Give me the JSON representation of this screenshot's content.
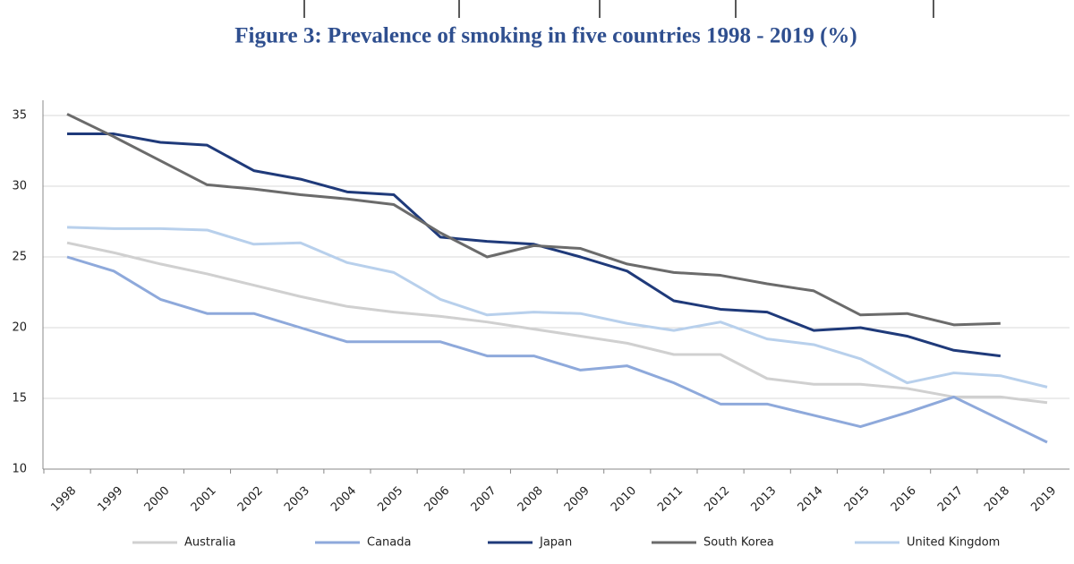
{
  "chart_data": {
    "type": "line",
    "title": "Figure 3: Prevalence of smoking in five countries 1998 - 2019 (%)",
    "categories": [
      "1998",
      "1999",
      "2000",
      "2001",
      "2002",
      "2003",
      "2004",
      "2005",
      "2006",
      "2007",
      "2008",
      "2009",
      "2010",
      "2011",
      "2012",
      "2013",
      "2014",
      "2015",
      "2016",
      "2017",
      "2018",
      "2019"
    ],
    "ylim": [
      10,
      35
    ],
    "yticks": [
      10,
      15,
      20,
      25,
      30,
      35
    ],
    "grid": true,
    "legend": "bottom",
    "series": [
      {
        "name": "Australia",
        "color": "#d0d0d0",
        "values": [
          26,
          25.3,
          24.5,
          23.8,
          23,
          22.2,
          21.5,
          21.1,
          20.8,
          20.4,
          19.9,
          19.4,
          18.9,
          18.1,
          18.1,
          16.4,
          16.0,
          16.0,
          15.7,
          15.1,
          15.1,
          14.7
        ]
      },
      {
        "name": "Canada",
        "color": "#8ea9db",
        "values": [
          25,
          24,
          22,
          21,
          21,
          20,
          19,
          19,
          19,
          18,
          18,
          17,
          17.3,
          16.1,
          14.6,
          14.6,
          13.8,
          13,
          14,
          15.1,
          13.5,
          11.9
        ]
      },
      {
        "name": "Japan",
        "color": "#1f3a7a",
        "values": [
          33.7,
          33.7,
          33.1,
          32.9,
          31.1,
          30.5,
          29.6,
          29.4,
          26.4,
          26.1,
          25.9,
          25.0,
          24.0,
          21.9,
          21.3,
          21.1,
          19.8,
          20.0,
          19.4,
          18.4,
          18.0,
          null
        ]
      },
      {
        "name": "South Korea",
        "color": "#6b6b6b",
        "values": [
          35.1,
          33.5,
          31.8,
          30.1,
          29.8,
          29.4,
          29.1,
          28.7,
          26.7,
          25.0,
          25.8,
          25.6,
          24.5,
          23.9,
          23.7,
          23.1,
          22.6,
          20.9,
          21.0,
          20.2,
          20.3,
          null
        ]
      },
      {
        "name": "United Kingdom",
        "color": "#b8d0ec",
        "values": [
          27.1,
          27.0,
          27.0,
          26.9,
          25.9,
          26.0,
          24.6,
          23.9,
          22.0,
          20.9,
          21.1,
          21.0,
          20.3,
          19.8,
          20.4,
          19.2,
          18.8,
          17.8,
          16.1,
          16.8,
          16.6,
          15.8
        ]
      }
    ]
  }
}
